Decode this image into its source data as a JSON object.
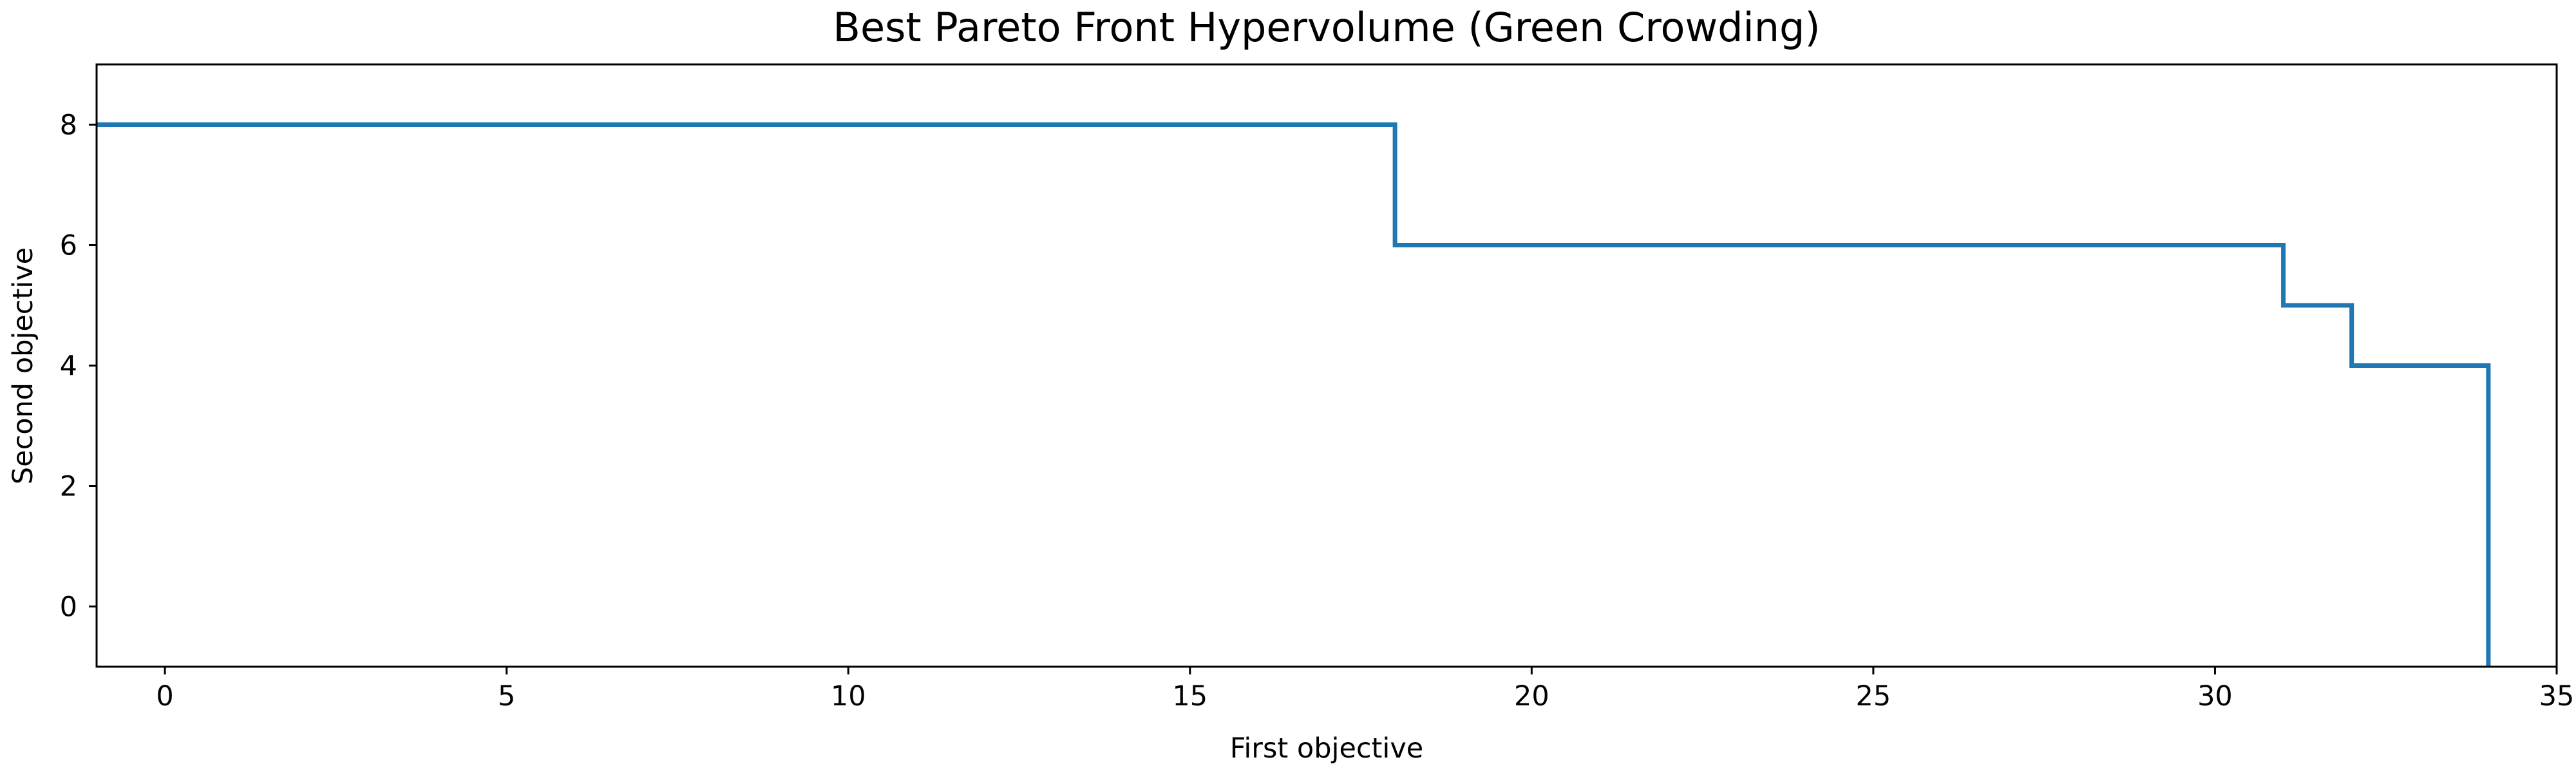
{
  "chart_data": {
    "type": "line",
    "title": "Best Pareto Front Hypervolume (Green Crowding)",
    "xlabel": "First objective",
    "ylabel": "Second objective",
    "xlim": [
      -1,
      35
    ],
    "ylim": [
      -1,
      9
    ],
    "xticks": [
      0,
      5,
      10,
      15,
      20,
      25,
      30,
      35
    ],
    "yticks": [
      0,
      2,
      4,
      6,
      8
    ],
    "grid": false,
    "legend": "none",
    "series": [
      {
        "x": [
          -1,
          18,
          18,
          31,
          31,
          32,
          32,
          34,
          34
        ],
        "y": [
          8,
          8,
          6,
          6,
          5,
          5,
          4,
          4,
          -1
        ]
      }
    ],
    "colors": {
      "line": "#1f77b4",
      "axes": "#000000"
    }
  }
}
